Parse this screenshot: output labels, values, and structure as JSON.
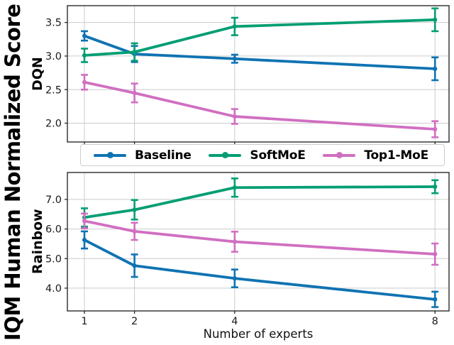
{
  "figure": {
    "ylabel": "IQM Human Normalized Score",
    "xlabel": "Number of experts",
    "background": "#ffffff"
  },
  "legend": {
    "position": "between-subplots",
    "items": [
      {
        "label": "Baseline",
        "color": "#0f73b2"
      },
      {
        "label": "SoftMoE",
        "color": "#029e73"
      },
      {
        "label": "Top1-MoE",
        "color": "#d06fc1"
      }
    ]
  },
  "colors": {
    "grid": "#cbcbcb",
    "spine": "#2a2a2a",
    "tick_text": "#1a1a1a"
  },
  "chart_data": [
    {
      "type": "line",
      "ylabel": "DQN",
      "grid": true,
      "x": [
        1,
        2,
        4,
        8
      ],
      "xlim": [
        0.66,
        8.28
      ],
      "ylim": [
        1.72,
        3.75
      ],
      "yticks": [
        2.0,
        2.5,
        3.0,
        3.5
      ],
      "xticklabels_visible": false,
      "series": [
        {
          "name": "Baseline",
          "color": "#0f73b2",
          "values": [
            3.3,
            3.03,
            2.96,
            2.81
          ],
          "err": [
            0.07,
            0.12,
            0.06,
            0.17
          ]
        },
        {
          "name": "SoftMoE",
          "color": "#029e73",
          "values": [
            3.01,
            3.06,
            3.44,
            3.54
          ],
          "err": [
            0.1,
            0.13,
            0.13,
            0.17
          ]
        },
        {
          "name": "Top1-MoE",
          "color": "#d06fc1",
          "values": [
            2.61,
            2.45,
            2.1,
            1.91
          ],
          "err": [
            0.11,
            0.14,
            0.11,
            0.12
          ]
        }
      ]
    },
    {
      "type": "line",
      "ylabel": "Rainbow",
      "grid": true,
      "x": [
        1,
        2,
        4,
        8
      ],
      "xlim": [
        0.66,
        8.28
      ],
      "ylim": [
        3.23,
        7.91
      ],
      "yticks": [
        4.0,
        5.0,
        6.0,
        7.0
      ],
      "xticklabels_visible": true,
      "series": [
        {
          "name": "Baseline",
          "color": "#0f73b2",
          "values": [
            5.63,
            4.76,
            4.33,
            3.62
          ],
          "err": [
            0.29,
            0.38,
            0.3,
            0.26
          ]
        },
        {
          "name": "SoftMoE",
          "color": "#029e73",
          "values": [
            6.39,
            6.65,
            7.4,
            7.43
          ],
          "err": [
            0.31,
            0.33,
            0.31,
            0.22
          ]
        },
        {
          "name": "Top1-MoE",
          "color": "#d06fc1",
          "values": [
            6.27,
            5.92,
            5.57,
            5.15
          ],
          "err": [
            0.25,
            0.29,
            0.34,
            0.36
          ]
        }
      ]
    }
  ]
}
